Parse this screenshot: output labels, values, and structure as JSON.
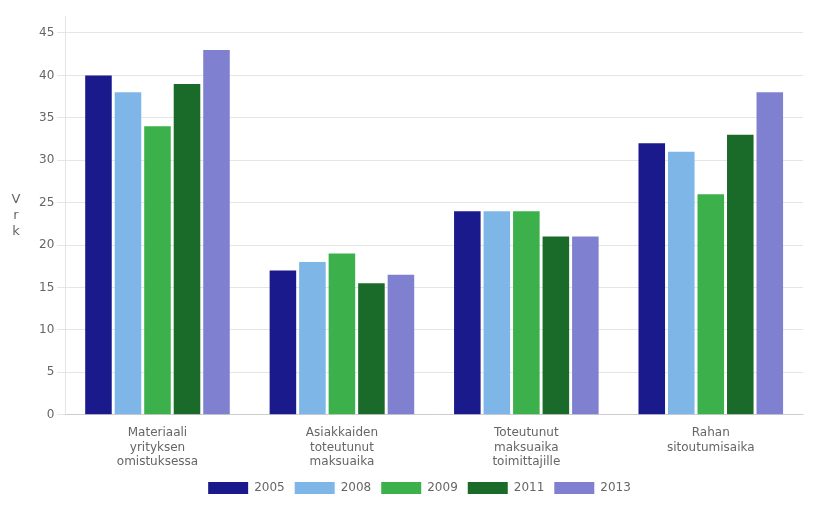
{
  "chart_data": {
    "type": "bar",
    "categories": [
      "Materiaali\nyrityksen\nomistuksessa",
      "Asiakkaiden\ntoteutunut\nmaksuaika",
      "Toteutunut\nmaksuaika\ntoimittajille",
      "Rahan\nsitoutumisaika"
    ],
    "series": [
      {
        "name": "2005",
        "color": "#1a1a8c",
        "values": [
          40,
          17,
          24,
          32
        ]
      },
      {
        "name": "2008",
        "color": "#7eb6e8",
        "values": [
          38,
          18,
          24,
          31
        ]
      },
      {
        "name": "2009",
        "color": "#3cb04a",
        "values": [
          34,
          19,
          24,
          26
        ]
      },
      {
        "name": "2011",
        "color": "#1a6b2a",
        "values": [
          39,
          15.5,
          21,
          33
        ]
      },
      {
        "name": "2013",
        "color": "#8080d0",
        "values": [
          43,
          16.5,
          21,
          38
        ]
      }
    ],
    "ylabel": "V\nr\nk",
    "ylim": [
      0,
      47
    ],
    "yticks": [
      0,
      5,
      10,
      15,
      20,
      25,
      30,
      35,
      40,
      45
    ],
    "grid": true,
    "legend": "bottom"
  }
}
